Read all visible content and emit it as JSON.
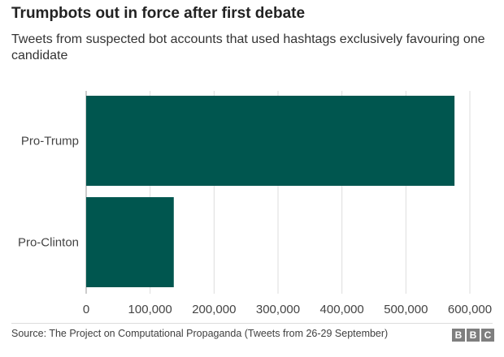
{
  "header": {
    "title": "Trumpbots out in force after first debate",
    "subtitle": "Tweets from suspected bot accounts that used hashtags exclusively favouring one candidate"
  },
  "chart_data": {
    "type": "bar",
    "orientation": "horizontal",
    "categories": [
      "Pro-Trump",
      "Pro-Clinton"
    ],
    "values": [
      576000,
      137000
    ],
    "xlim": [
      0,
      600000
    ],
    "xticks": [
      "0",
      "100,000",
      "200,000",
      "300,000",
      "400,000",
      "500,000",
      "600,000"
    ],
    "grid": true,
    "bar_color": "#00564f"
  },
  "footer": {
    "source": "Source: The Project on Computational Propaganda (Tweets from 26-29 September)",
    "logo_letters": [
      "B",
      "B",
      "C"
    ]
  }
}
